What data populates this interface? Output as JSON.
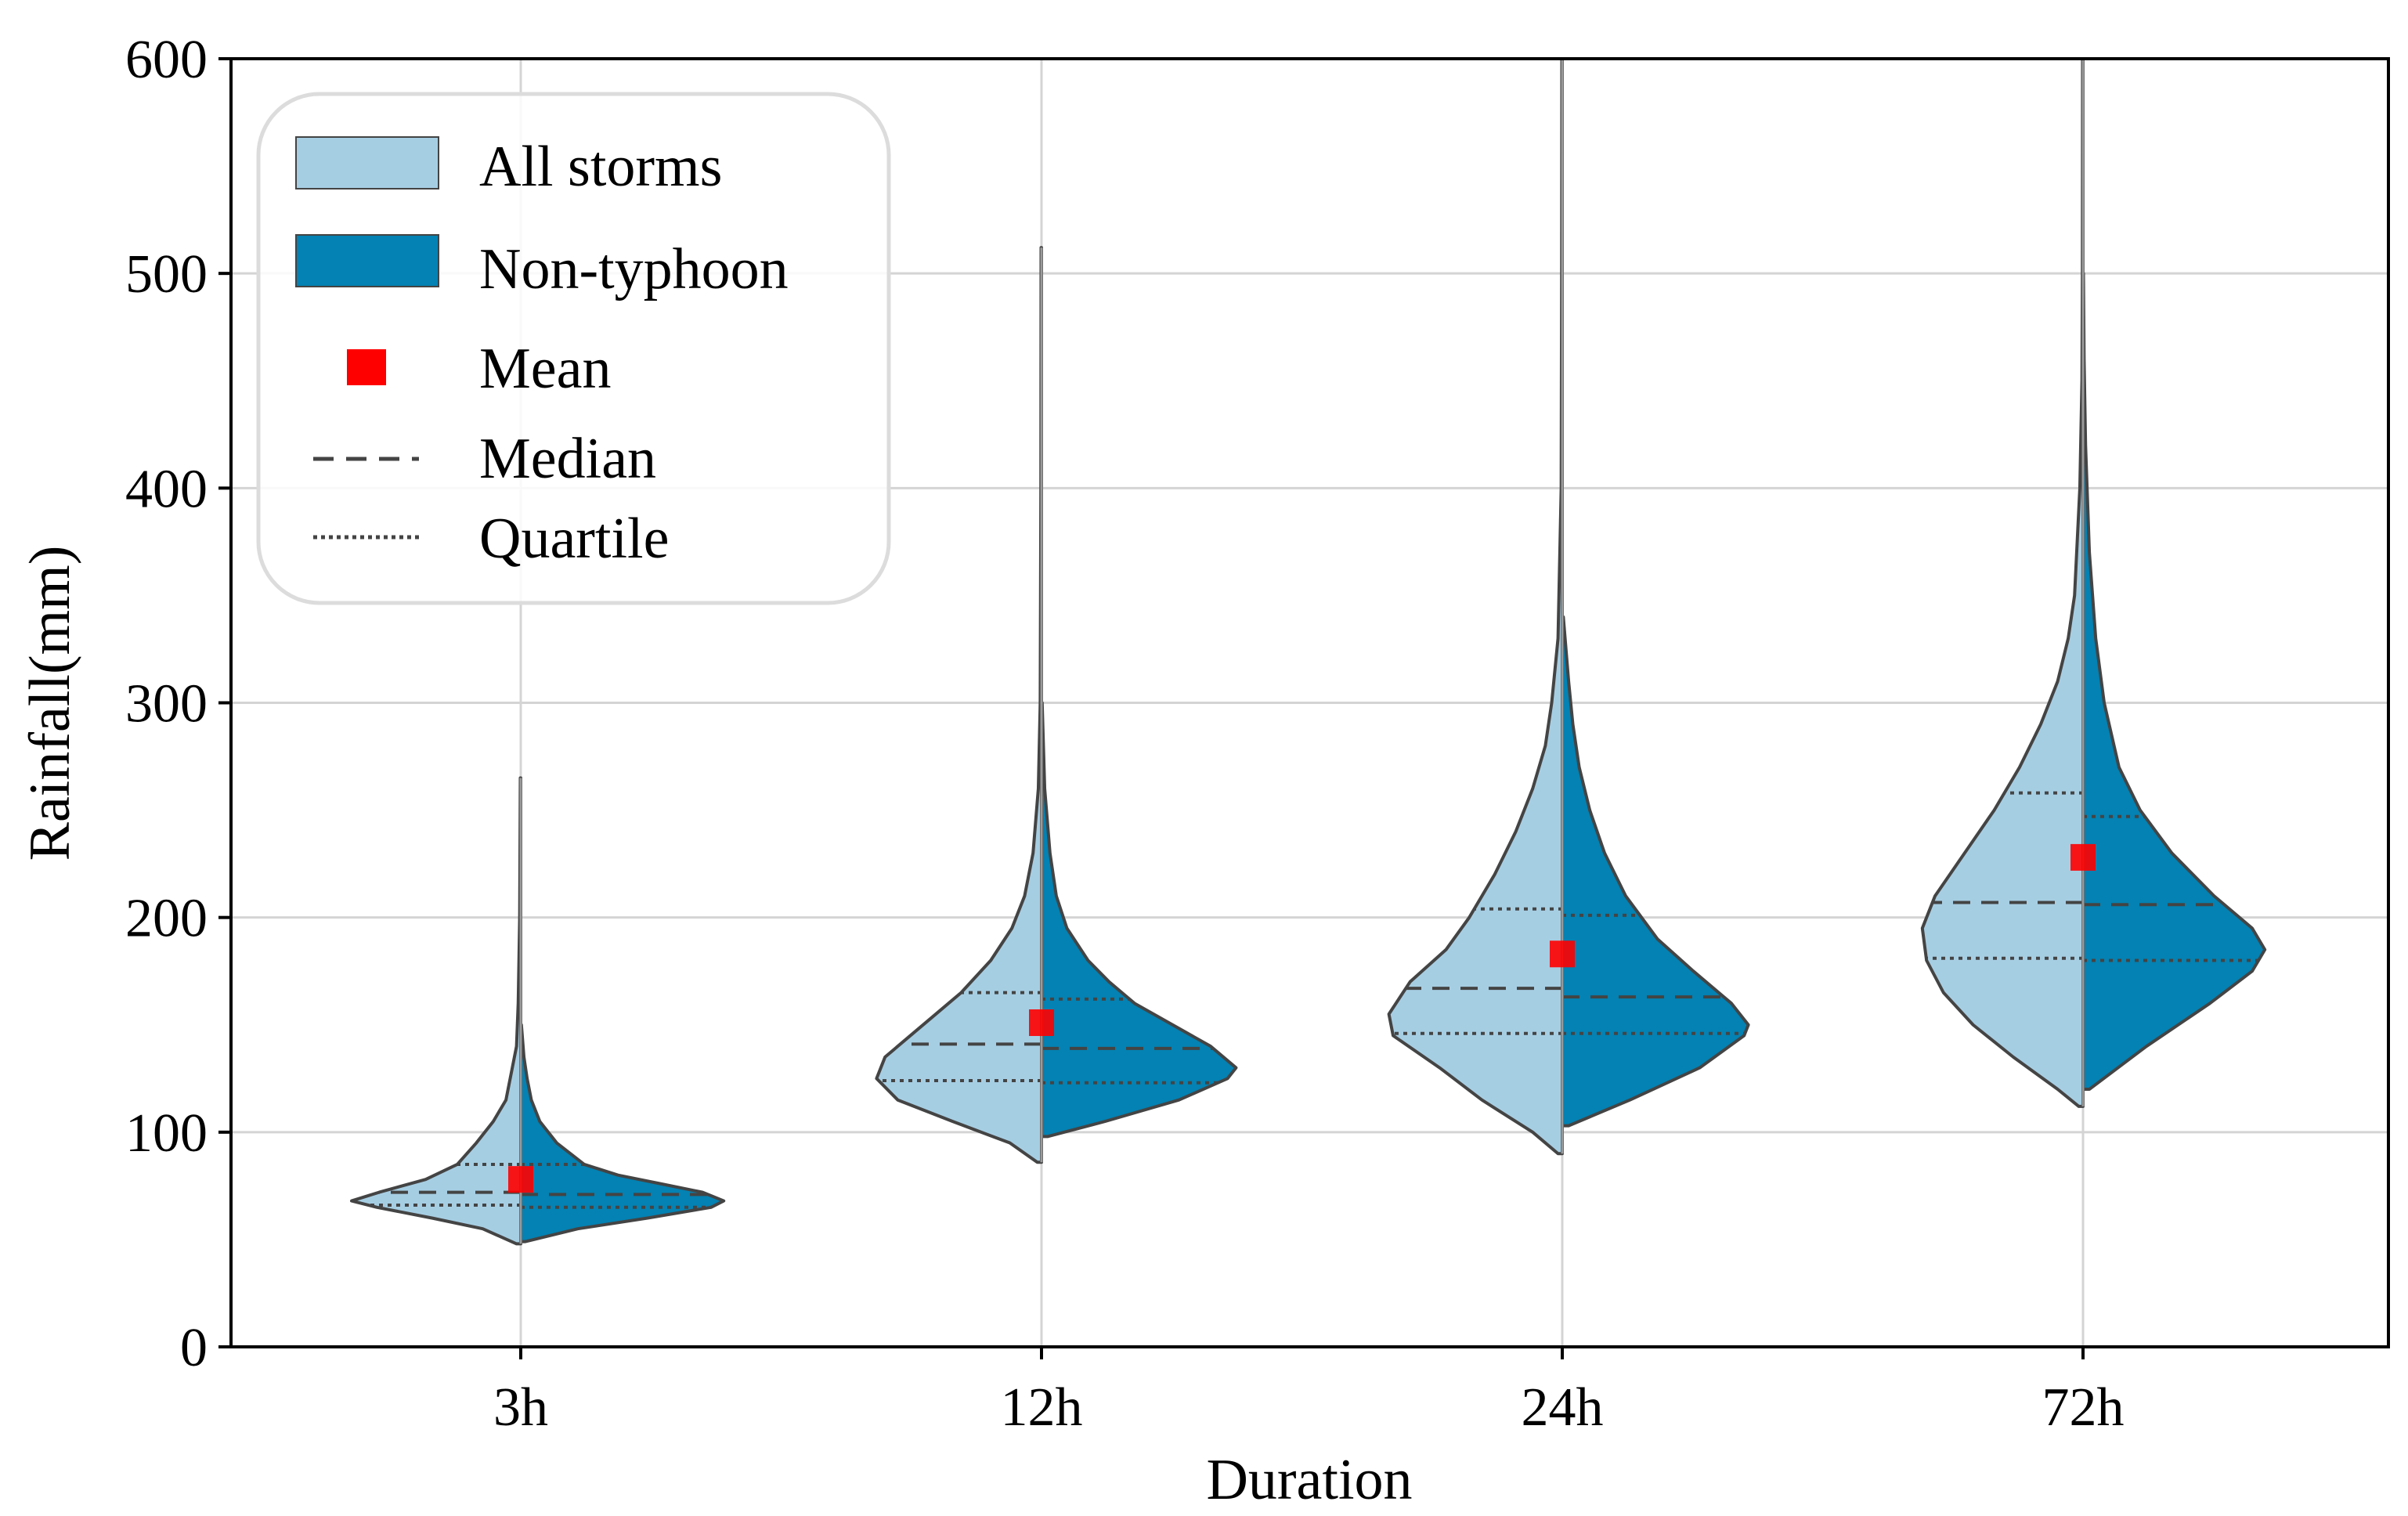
{
  "chart_data": {
    "type": "violin",
    "title": "",
    "xlabel": "Duration",
    "ylabel": "Rainfall(mm)",
    "ylim": [
      0,
      600
    ],
    "yticks": [
      0,
      100,
      200,
      300,
      400,
      500,
      600
    ],
    "grid": true,
    "legend_position": "top-left",
    "categories": [
      "3h",
      "12h",
      "24h",
      "72h"
    ],
    "colors": {
      "all_storms": "#a6cee3",
      "non_typhoon": "#0382b3",
      "mean": "#ff0000",
      "outline": "#444444",
      "grid": "#d4d4d4"
    },
    "legend": [
      {
        "key": "all",
        "label": "All storms"
      },
      {
        "key": "non",
        "label": "Non-typhoon"
      },
      {
        "key": "mean",
        "label": "Mean"
      },
      {
        "key": "median",
        "label": "Median"
      },
      {
        "key": "quartile",
        "label": "Quartile"
      }
    ],
    "series": [
      {
        "name": "All storms",
        "side": "left",
        "violins": [
          {
            "category": "3h",
            "min": 48,
            "max": 265,
            "q1": 66,
            "median": 72,
            "q3": 85,
            "mean": 78,
            "profile": [
              [
                48,
                0.02
              ],
              [
                55,
                0.18
              ],
              [
                60,
                0.42
              ],
              [
                65,
                0.68
              ],
              [
                68,
                0.8
              ],
              [
                72,
                0.67
              ],
              [
                78,
                0.45
              ],
              [
                85,
                0.3
              ],
              [
                95,
                0.21
              ],
              [
                105,
                0.13
              ],
              [
                115,
                0.07
              ],
              [
                130,
                0.04
              ],
              [
                140,
                0.02
              ],
              [
                160,
                0.012
              ],
              [
                200,
                0.005
              ],
              [
                265,
                0.002
              ]
            ]
          },
          {
            "category": "12h",
            "min": 86,
            "max": 512,
            "q1": 124,
            "median": 141,
            "q3": 165,
            "mean": 151,
            "profile": [
              [
                86,
                0.02
              ],
              [
                95,
                0.15
              ],
              [
                105,
                0.42
              ],
              [
                115,
                0.68
              ],
              [
                125,
                0.78
              ],
              [
                135,
                0.74
              ],
              [
                145,
                0.62
              ],
              [
                155,
                0.5
              ],
              [
                165,
                0.38
              ],
              [
                180,
                0.24
              ],
              [
                195,
                0.14
              ],
              [
                210,
                0.08
              ],
              [
                230,
                0.04
              ],
              [
                260,
                0.015
              ],
              [
                300,
                0.006
              ],
              [
                400,
                0.003
              ],
              [
                512,
                0.002
              ]
            ]
          },
          {
            "category": "24h",
            "min": 90,
            "max": 600,
            "q1": 146,
            "median": 167,
            "q3": 204,
            "mean": 183,
            "profile": [
              [
                90,
                0.02
              ],
              [
                100,
                0.14
              ],
              [
                115,
                0.38
              ],
              [
                130,
                0.58
              ],
              [
                145,
                0.8
              ],
              [
                155,
                0.82
              ],
              [
                170,
                0.72
              ],
              [
                185,
                0.55
              ],
              [
                200,
                0.44
              ],
              [
                220,
                0.32
              ],
              [
                240,
                0.22
              ],
              [
                260,
                0.14
              ],
              [
                280,
                0.08
              ],
              [
                300,
                0.05
              ],
              [
                330,
                0.02
              ],
              [
                400,
                0.005
              ],
              [
                500,
                0.003
              ],
              [
                600,
                0.002
              ]
            ]
          },
          {
            "category": "72h",
            "min": 112,
            "max": 600,
            "q1": 181,
            "median": 207,
            "q3": 258,
            "mean": 228,
            "profile": [
              [
                112,
                0.02
              ],
              [
                120,
                0.12
              ],
              [
                135,
                0.33
              ],
              [
                150,
                0.52
              ],
              [
                165,
                0.66
              ],
              [
                180,
                0.74
              ],
              [
                195,
                0.76
              ],
              [
                210,
                0.7
              ],
              [
                230,
                0.56
              ],
              [
                250,
                0.42
              ],
              [
                270,
                0.3
              ],
              [
                290,
                0.2
              ],
              [
                310,
                0.12
              ],
              [
                330,
                0.07
              ],
              [
                350,
                0.04
              ],
              [
                400,
                0.015
              ],
              [
                450,
                0.005
              ],
              [
                500,
                0.003
              ],
              [
                600,
                0.002
              ]
            ]
          }
        ]
      },
      {
        "name": "Non-typhoon",
        "side": "right",
        "violins": [
          {
            "category": "3h",
            "min": 49,
            "max": 150,
            "q1": 65,
            "median": 71,
            "q3": 85,
            "mean": 78,
            "profile": [
              [
                49,
                0.02
              ],
              [
                55,
                0.27
              ],
              [
                60,
                0.6
              ],
              [
                65,
                0.9
              ],
              [
                68,
                0.96
              ],
              [
                72,
                0.86
              ],
              [
                76,
                0.66
              ],
              [
                80,
                0.46
              ],
              [
                85,
                0.3
              ],
              [
                95,
                0.17
              ],
              [
                105,
                0.09
              ],
              [
                115,
                0.05
              ],
              [
                125,
                0.03
              ],
              [
                135,
                0.015
              ],
              [
                150,
                0.003
              ]
            ]
          },
          {
            "category": "12h",
            "min": 98,
            "max": 300,
            "q1": 123,
            "median": 139,
            "q3": 162,
            "mean": 151,
            "profile": [
              [
                98,
                0.03
              ],
              [
                105,
                0.3
              ],
              [
                115,
                0.65
              ],
              [
                125,
                0.88
              ],
              [
                130,
                0.92
              ],
              [
                140,
                0.8
              ],
              [
                150,
                0.62
              ],
              [
                160,
                0.44
              ],
              [
                170,
                0.32
              ],
              [
                180,
                0.22
              ],
              [
                195,
                0.12
              ],
              [
                210,
                0.07
              ],
              [
                230,
                0.04
              ],
              [
                260,
                0.015
              ],
              [
                300,
                0.003
              ]
            ]
          },
          {
            "category": "24h",
            "min": 103,
            "max": 340,
            "q1": 146,
            "median": 163,
            "q3": 201,
            "mean": 183,
            "profile": [
              [
                103,
                0.03
              ],
              [
                115,
                0.32
              ],
              [
                130,
                0.65
              ],
              [
                145,
                0.86
              ],
              [
                150,
                0.88
              ],
              [
                160,
                0.8
              ],
              [
                175,
                0.62
              ],
              [
                190,
                0.45
              ],
              [
                210,
                0.3
              ],
              [
                230,
                0.2
              ],
              [
                250,
                0.13
              ],
              [
                270,
                0.08
              ],
              [
                290,
                0.05
              ],
              [
                310,
                0.03
              ],
              [
                340,
                0.005
              ]
            ]
          },
          {
            "category": "72h",
            "min": 120,
            "max": 500,
            "q1": 180,
            "median": 206,
            "q3": 247,
            "mean": 228,
            "profile": [
              [
                120,
                0.03
              ],
              [
                140,
                0.3
              ],
              [
                160,
                0.6
              ],
              [
                175,
                0.8
              ],
              [
                185,
                0.86
              ],
              [
                195,
                0.8
              ],
              [
                210,
                0.62
              ],
              [
                230,
                0.42
              ],
              [
                250,
                0.27
              ],
              [
                270,
                0.17
              ],
              [
                300,
                0.1
              ],
              [
                330,
                0.06
              ],
              [
                370,
                0.03
              ],
              [
                420,
                0.012
              ],
              [
                460,
                0.005
              ],
              [
                500,
                0.002
              ]
            ]
          }
        ]
      }
    ]
  }
}
